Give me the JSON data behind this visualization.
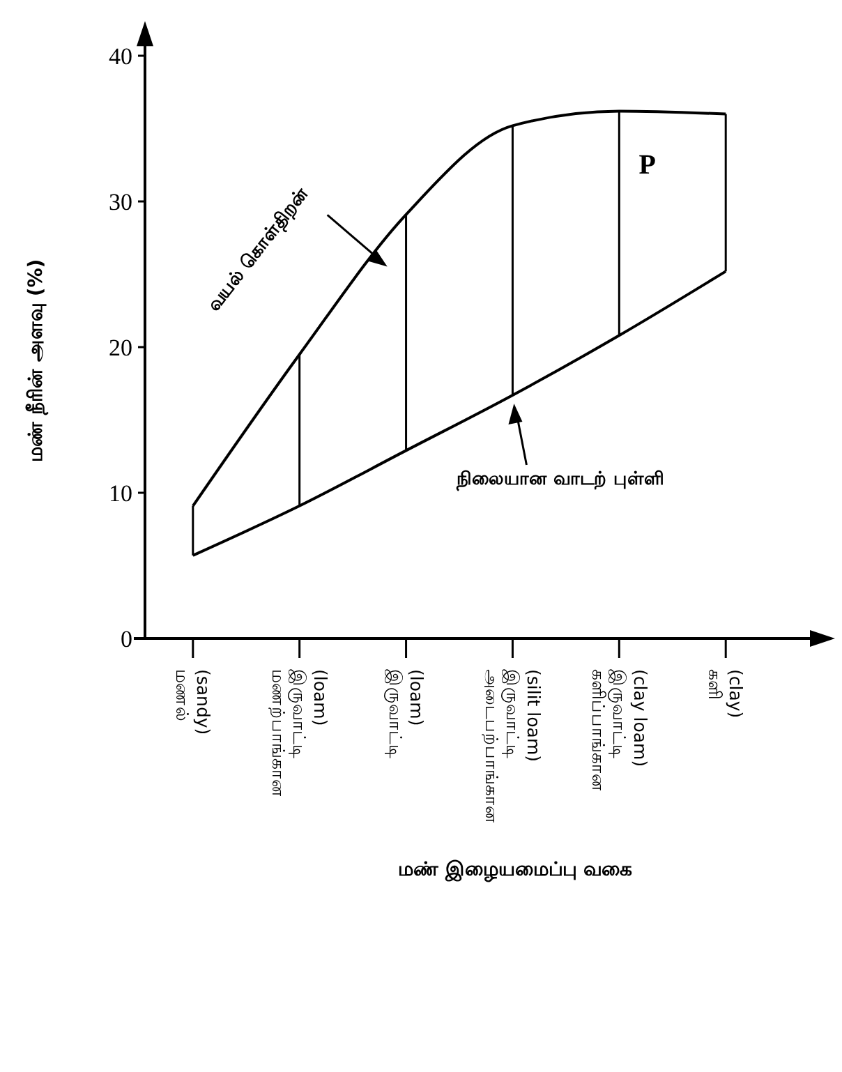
{
  "chart_data": {
    "type": "line",
    "ylabel": "மண் நீரின் அளவு (%)",
    "xlabel": "மண் இழையமைப்பு வகை",
    "categories": [
      "மணல் (sandy)",
      "மணற்பாங்கான இருவாட்டி (loam)",
      "இருவாட்டி (loam)",
      "அடைபற்பாங்கான இருவாட்டி (silit loam)",
      "களிப்பாங்கான இருவாட்டி (clay loam)",
      "களி (clay)"
    ],
    "series": [
      {
        "name": "வயல் கொள்திறன்",
        "color": "#000000",
        "values": [
          9.1,
          19.5,
          29.1,
          35.2,
          36.2,
          36
        ]
      },
      {
        "name": "நிலையான வாடற் புள்ளி",
        "color": "#000000",
        "values": [
          5.7,
          9.1,
          12.9,
          16.7,
          20.8,
          25.2
        ]
      }
    ],
    "annotations": [
      "P"
    ],
    "ylim": [
      0,
      42
    ],
    "yticks": [
      0,
      10,
      20,
      30,
      40
    ],
    "grid": false,
    "marker": "none"
  }
}
